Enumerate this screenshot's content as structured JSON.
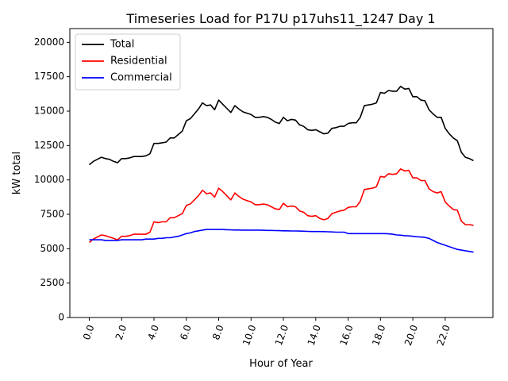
{
  "chart_data": {
    "type": "line",
    "title": "Timeseries Load for P17U p17uhs11_1247  Day 1",
    "xlabel": "Hour of Year",
    "ylabel": "kW total",
    "xlim": [
      -1.2,
      24.95
    ],
    "ylim": [
      0,
      21000
    ],
    "xticks": [
      0,
      2,
      4,
      6,
      8,
      10,
      12,
      14,
      16,
      18,
      20,
      22
    ],
    "xtick_labels": [
      "0.0",
      "2.0",
      "4.0",
      "6.0",
      "8.0",
      "10.0",
      "12.0",
      "14.0",
      "16.0",
      "18.0",
      "20.0",
      "22.0"
    ],
    "yticks": [
      0,
      2500,
      5000,
      7500,
      10000,
      12500,
      15000,
      17500,
      20000
    ],
    "ytick_labels": [
      "0",
      "2500",
      "5000",
      "7500",
      "10000",
      "12500",
      "15000",
      "17500",
      "20000"
    ],
    "grid": false,
    "legend_position": "top-left",
    "x": [
      0.0,
      0.25,
      0.5,
      0.75,
      1.0,
      1.25,
      1.5,
      1.75,
      2.0,
      2.25,
      2.5,
      2.75,
      3.0,
      3.25,
      3.5,
      3.75,
      4.0,
      4.25,
      4.5,
      4.75,
      5.0,
      5.25,
      5.5,
      5.75,
      6.0,
      6.25,
      6.5,
      6.75,
      7.0,
      7.25,
      7.5,
      7.75,
      8.0,
      8.25,
      8.5,
      8.75,
      9.0,
      9.25,
      9.5,
      9.75,
      10.0,
      10.25,
      10.5,
      10.75,
      11.0,
      11.25,
      11.5,
      11.75,
      12.0,
      12.25,
      12.5,
      12.75,
      13.0,
      13.25,
      13.5,
      13.75,
      14.0,
      14.25,
      14.5,
      14.75,
      15.0,
      15.25,
      15.5,
      15.75,
      16.0,
      16.25,
      16.5,
      16.75,
      17.0,
      17.25,
      17.5,
      17.75,
      18.0,
      18.25,
      18.5,
      18.75,
      19.0,
      19.25,
      19.5,
      19.75,
      20.0,
      20.25,
      20.5,
      20.75,
      21.0,
      21.25,
      21.5,
      21.75,
      22.0,
      22.25,
      22.5,
      22.75,
      23.0,
      23.25,
      23.5,
      23.75
    ],
    "series": [
      {
        "name": "Total",
        "color": "#000000",
        "values": [
          11100,
          11350,
          11500,
          11650,
          11550,
          11500,
          11350,
          11250,
          11550,
          11550,
          11600,
          11700,
          11700,
          11700,
          11750,
          11900,
          12650,
          12650,
          12700,
          12750,
          13050,
          13050,
          13300,
          13550,
          14300,
          14450,
          14800,
          15150,
          15600,
          15400,
          15450,
          15100,
          15800,
          15500,
          15200,
          14900,
          15400,
          15150,
          14950,
          14850,
          14750,
          14550,
          14550,
          14600,
          14550,
          14400,
          14200,
          14100,
          14550,
          14300,
          14400,
          14350,
          14000,
          13900,
          13650,
          13600,
          13650,
          13500,
          13350,
          13400,
          13750,
          13800,
          13900,
          13900,
          14100,
          14150,
          14150,
          14550,
          15400,
          15450,
          15500,
          15600,
          16350,
          16300,
          16500,
          16450,
          16450,
          16800,
          16600,
          16650,
          16050,
          16050,
          15800,
          15750,
          15100,
          14800,
          14550,
          14550,
          13750,
          13350,
          13050,
          12850,
          12000,
          11650,
          11550,
          11400
        ]
      },
      {
        "name": "Residential",
        "color": "#ff0000",
        "values": [
          5450,
          5700,
          5850,
          6000,
          5950,
          5850,
          5750,
          5650,
          5900,
          5900,
          5950,
          6050,
          6050,
          6050,
          6050,
          6200,
          6950,
          6900,
          6950,
          6950,
          7250,
          7250,
          7400,
          7550,
          8150,
          8250,
          8550,
          8850,
          9250,
          9000,
          9050,
          8750,
          9400,
          9150,
          8850,
          8550,
          9050,
          8800,
          8600,
          8500,
          8400,
          8200,
          8200,
          8250,
          8200,
          8050,
          7900,
          7850,
          8300,
          8050,
          8100,
          8050,
          7750,
          7650,
          7400,
          7350,
          7400,
          7200,
          7100,
          7200,
          7550,
          7650,
          7750,
          7800,
          8000,
          8050,
          8050,
          8450,
          9300,
          9350,
          9400,
          9500,
          10250,
          10200,
          10450,
          10400,
          10450,
          10800,
          10650,
          10700,
          10150,
          10150,
          9950,
          9950,
          9350,
          9150,
          9050,
          9150,
          8400,
          8100,
          7850,
          7800,
          7000,
          6750,
          6750,
          6700
        ]
      },
      {
        "name": "Commercial",
        "color": "#0000ff",
        "values": [
          5650,
          5650,
          5650,
          5650,
          5600,
          5600,
          5600,
          5600,
          5650,
          5650,
          5650,
          5650,
          5650,
          5650,
          5700,
          5700,
          5700,
          5750,
          5750,
          5800,
          5800,
          5850,
          5900,
          6000,
          6100,
          6150,
          6250,
          6300,
          6350,
          6400,
          6400,
          6400,
          6400,
          6400,
          6380,
          6370,
          6360,
          6360,
          6350,
          6350,
          6350,
          6350,
          6350,
          6340,
          6330,
          6330,
          6320,
          6310,
          6300,
          6300,
          6290,
          6290,
          6280,
          6270,
          6260,
          6250,
          6250,
          6250,
          6240,
          6230,
          6220,
          6200,
          6200,
          6200,
          6100,
          6100,
          6100,
          6100,
          6100,
          6100,
          6100,
          6100,
          6100,
          6100,
          6080,
          6050,
          6000,
          5980,
          5950,
          5930,
          5900,
          5870,
          5850,
          5820,
          5750,
          5600,
          5450,
          5350,
          5250,
          5150,
          5050,
          4950,
          4900,
          4850,
          4800,
          4750
        ]
      }
    ]
  }
}
